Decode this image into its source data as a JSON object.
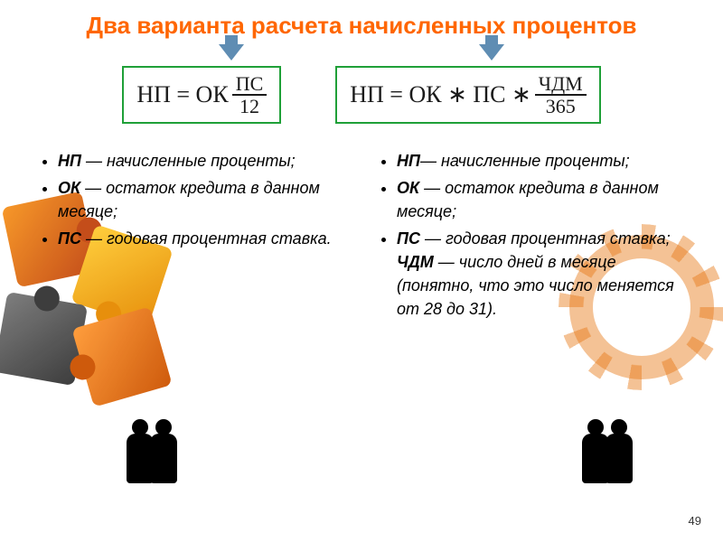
{
  "title": "Два варианта расчета начисленных процентов",
  "formula1": {
    "lhs": "НП = ОК",
    "num": "ПС",
    "den": "12"
  },
  "formula2": {
    "lhs": "НП = ОК ∗ ПС ∗",
    "num": "ЧДМ",
    "den": "365"
  },
  "colors": {
    "title": "#ff6600",
    "formula_border": "#1fa038",
    "arrow": "#5f8db3"
  },
  "left_list": {
    "i1": {
      "abbr": "НП",
      "rest": " — начисленные проценты;"
    },
    "i2": {
      "abbr": "ОК",
      "rest": " — остаток кредита в данном месяце;"
    },
    "i3": {
      "abbr": "ПС",
      "rest": " — годовая процентная ставка."
    }
  },
  "right_list": {
    "i1": {
      "abbr": "НП",
      "rest": "— начисленные проценты;"
    },
    "i2": {
      "abbr": "ОК",
      "rest": " — остаток кредита в данном месяце;"
    },
    "i3": {
      "abbr": "ПС",
      "rest": " — годовая процентная ставка; ",
      "abbr2": "ЧДМ",
      "rest2": " — число дней в месяце (понятно, что это число меняется от 28 до 31)."
    }
  },
  "page_number": "49"
}
